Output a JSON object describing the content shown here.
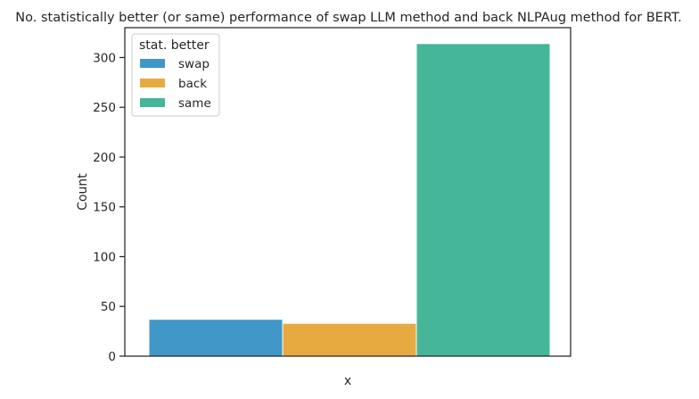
{
  "chart_data": {
    "type": "bar",
    "title": "No. statistically better (or same) performance of swap LLM method and back NLPAug method for BERT.",
    "xlabel": "x",
    "ylabel": "Count",
    "ylim": [
      0,
      330
    ],
    "yticks": [
      0,
      50,
      100,
      150,
      200,
      250,
      300
    ],
    "grid": false,
    "legend": {
      "title": "stat. better",
      "placement": "top-left"
    },
    "series": [
      {
        "name": "swap",
        "value": 37,
        "color": "#4097c8"
      },
      {
        "name": "back",
        "value": 33,
        "color": "#e6aa41"
      },
      {
        "name": "same",
        "value": 314,
        "color": "#45b697"
      }
    ]
  }
}
